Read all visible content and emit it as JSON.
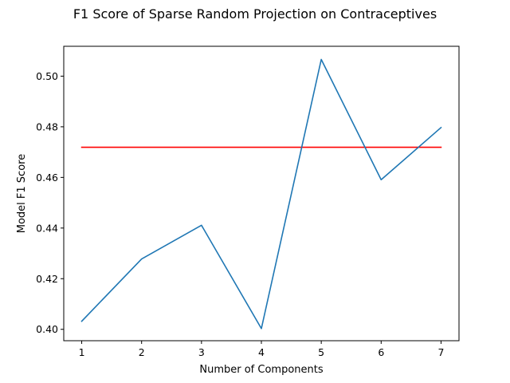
{
  "chart_data": {
    "type": "line",
    "title": "F1 Score of Sparse Random Projection on Contraceptives",
    "xlabel": "Number of Components",
    "ylabel": "Model F1 Score",
    "x": [
      1,
      2,
      3,
      4,
      5,
      6,
      7
    ],
    "x_ticks": [
      "1",
      "2",
      "3",
      "4",
      "5",
      "6",
      "7"
    ],
    "y_ticks": [
      "0.40",
      "0.42",
      "0.44",
      "0.46",
      "0.48",
      "0.50"
    ],
    "y_tick_values": [
      0.4,
      0.42,
      0.44,
      0.46,
      0.48,
      0.5
    ],
    "xlim": [
      0.7,
      7.3
    ],
    "ylim": [
      0.3955,
      0.5118
    ],
    "grid": false,
    "series": [
      {
        "values": [
          0.4032,
          0.4278,
          0.4411,
          0.4003,
          0.5066,
          0.4591,
          0.4797
        ],
        "color": "#1f77b4"
      },
      {
        "values": [
          0.4719,
          0.4719,
          0.4719,
          0.4719,
          0.4719,
          0.4719,
          0.4719
        ],
        "color": "#ff0000"
      }
    ]
  }
}
